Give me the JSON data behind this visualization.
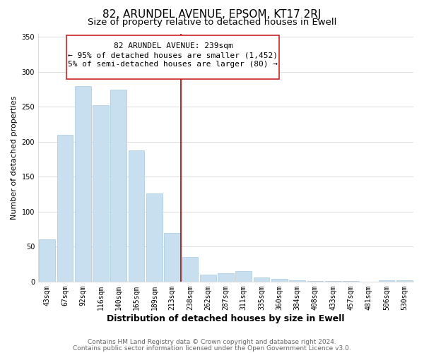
{
  "title": "82, ARUNDEL AVENUE, EPSOM, KT17 2RJ",
  "subtitle": "Size of property relative to detached houses in Ewell",
  "xlabel": "Distribution of detached houses by size in Ewell",
  "ylabel": "Number of detached properties",
  "bar_labels": [
    "43sqm",
    "67sqm",
    "92sqm",
    "116sqm",
    "140sqm",
    "165sqm",
    "189sqm",
    "213sqm",
    "238sqm",
    "262sqm",
    "287sqm",
    "311sqm",
    "335sqm",
    "360sqm",
    "384sqm",
    "408sqm",
    "433sqm",
    "457sqm",
    "481sqm",
    "506sqm",
    "530sqm"
  ],
  "bar_values": [
    60,
    210,
    280,
    252,
    275,
    188,
    126,
    70,
    35,
    10,
    12,
    15,
    6,
    4,
    2,
    1,
    0.5,
    0.5,
    0,
    2,
    2
  ],
  "bar_color": "#c8dff0",
  "bar_edge_color": "#a8c8e0",
  "vline_color": "#aa0000",
  "annotation_line1": "82 ARUNDEL AVENUE: 239sqm",
  "annotation_line2": "← 95% of detached houses are smaller (1,452)",
  "annotation_line3": "5% of semi-detached houses are larger (80) →",
  "annotation_box_facecolor": "#ffffff",
  "annotation_box_edgecolor": "#cc2222",
  "ylim": [
    0,
    355
  ],
  "yticks": [
    0,
    50,
    100,
    150,
    200,
    250,
    300,
    350
  ],
  "footer1": "Contains HM Land Registry data © Crown copyright and database right 2024.",
  "footer2": "Contains public sector information licensed under the Open Government Licence v3.0.",
  "bg_color": "#ffffff",
  "plot_bg_color": "#ffffff",
  "grid_color": "#dddddd",
  "title_fontsize": 11,
  "subtitle_fontsize": 9.5,
  "xlabel_fontsize": 9,
  "ylabel_fontsize": 8,
  "tick_fontsize": 7,
  "annotation_fontsize": 8,
  "footer_fontsize": 6.5
}
